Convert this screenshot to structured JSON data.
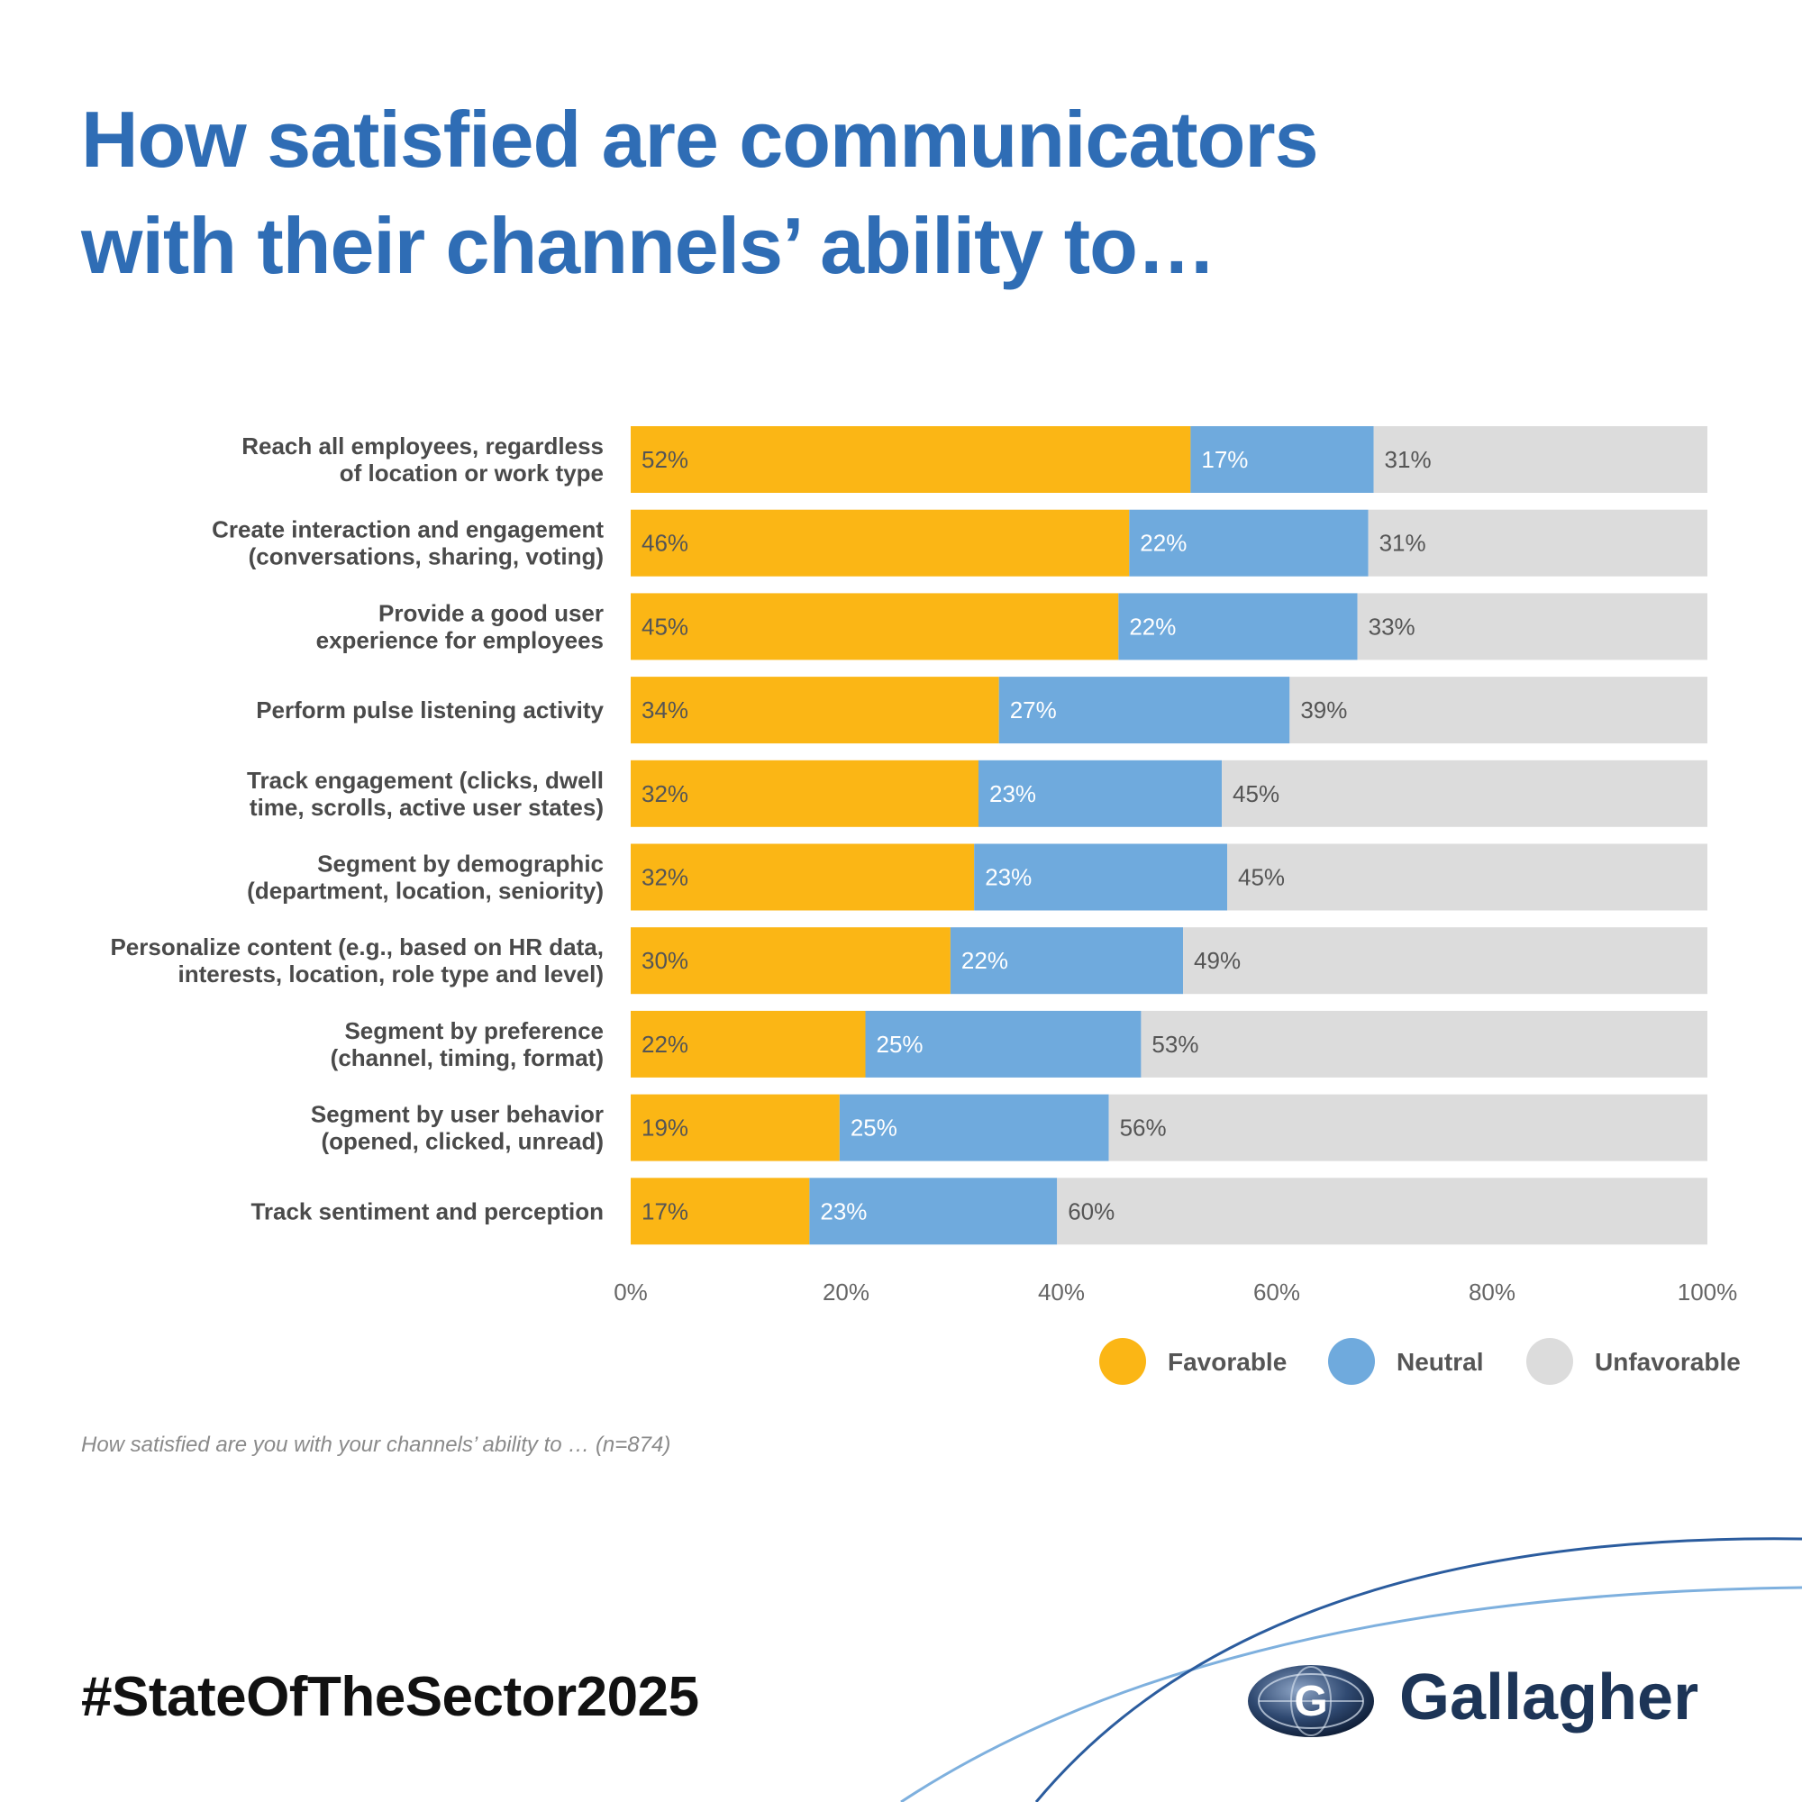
{
  "title_lines": [
    "How satisfied are communicators",
    "with their channels’ ability to…"
  ],
  "footnote": "How satisfied are you with your channels’ ability to … (n=874)",
  "hashtag": "#StateOfTheSector2025",
  "brand": {
    "name": "Gallagher",
    "logo_icon": "globe-g-icon"
  },
  "colors": {
    "favorable": "#fbb615",
    "neutral": "#6faadd",
    "unfavorable": "#dcdcdc",
    "title": "#2f6db5"
  },
  "chart_data": {
    "type": "bar",
    "orientation": "horizontal",
    "stacked": true,
    "title": "How satisfied are communicators with their channels’ ability to…",
    "categories": [
      [
        "Reach all employees, regardless",
        "of location or work type"
      ],
      [
        "Create interaction and engagement",
        "(conversations, sharing, voting)"
      ],
      [
        "Provide a good user",
        "experience for employees"
      ],
      [
        "Perform pulse listening activity"
      ],
      [
        "Track engagement (clicks, dwell",
        "time, scrolls, active user states)"
      ],
      [
        "Segment by demographic",
        "(department, location, seniority)"
      ],
      [
        "Personalize content (e.g., based on HR data,",
        "interests, location, role type and level)"
      ],
      [
        "Segment by preference",
        "(channel, timing, format)"
      ],
      [
        "Segment by user behavior",
        "(opened, clicked, unread)"
      ],
      [
        "Track sentiment and perception"
      ]
    ],
    "series": [
      {
        "name": "Favorable",
        "values": [
          52,
          46,
          45,
          34,
          32,
          32,
          30,
          22,
          19,
          17
        ]
      },
      {
        "name": "Neutral",
        "values": [
          17,
          22,
          22,
          27,
          23,
          23,
          22,
          25,
          25,
          23
        ]
      },
      {
        "name": "Unfavorable",
        "values": [
          31,
          31,
          33,
          39,
          45,
          45,
          49,
          53,
          56,
          60
        ]
      }
    ],
    "bar_extents": [
      [
        52,
        69,
        100
      ],
      [
        46.3,
        68.5,
        100
      ],
      [
        45.3,
        67.5,
        100
      ],
      [
        34.2,
        61.2,
        100
      ],
      [
        32.3,
        54.9,
        100
      ],
      [
        31.9,
        55.4,
        100
      ],
      [
        29.7,
        51.3,
        100
      ],
      [
        21.8,
        47.4,
        100
      ],
      [
        19.4,
        44.4,
        100
      ],
      [
        16.6,
        39.6,
        100
      ]
    ],
    "xlim": [
      0,
      100
    ],
    "xticks": [
      "0%",
      "20%",
      "40%",
      "60%",
      "80%",
      "100%"
    ],
    "value_suffix": "%",
    "legend_position": "bottom-right",
    "grid": false
  }
}
